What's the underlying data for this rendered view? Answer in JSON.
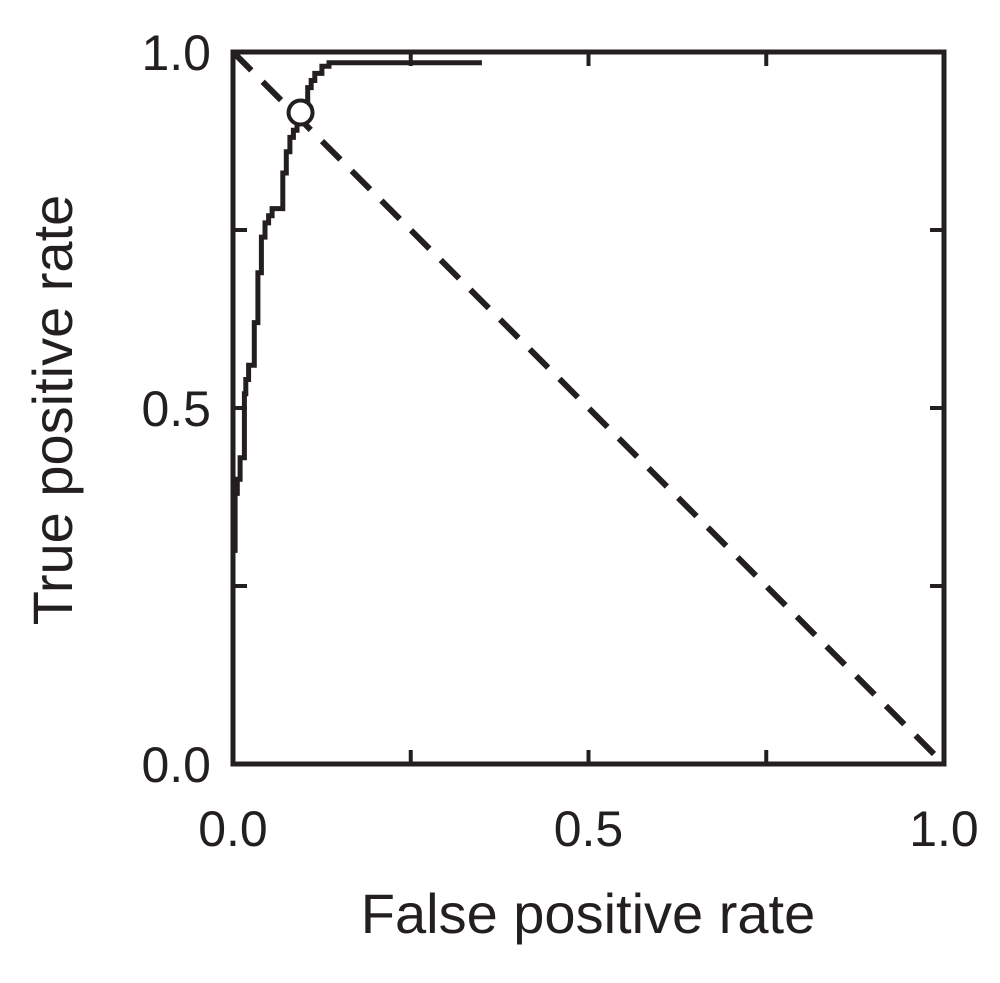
{
  "colors": {
    "ink": "#231f20",
    "background": "#ffffff"
  },
  "chart_data": {
    "type": "line",
    "title": "",
    "xlabel": "False positive rate",
    "ylabel": "True positive rate",
    "xlim": [
      0,
      1
    ],
    "ylim": [
      0,
      1
    ],
    "x_ticks": [
      0,
      0.25,
      0.5,
      0.75,
      1.0
    ],
    "y_ticks": [
      0,
      0.25,
      0.5,
      0.75,
      1.0
    ],
    "x_tick_labels": [
      "0.0",
      "0.5",
      "1.0"
    ],
    "x_tick_label_values": [
      0,
      0.5,
      1.0
    ],
    "y_tick_labels": [
      "0.0",
      "0.5",
      "1.0"
    ],
    "y_tick_label_values": [
      0,
      0.5,
      1.0
    ],
    "grid": false,
    "legend": "none",
    "series": [
      {
        "style": "solid",
        "x": [
          0.0,
          0.0,
          0.003,
          0.003,
          0.006,
          0.006,
          0.01,
          0.01,
          0.016,
          0.016,
          0.018,
          0.018,
          0.022,
          0.022,
          0.03,
          0.03,
          0.035,
          0.035,
          0.04,
          0.04,
          0.045,
          0.045,
          0.05,
          0.05,
          0.055,
          0.055,
          0.06,
          0.06,
          0.07,
          0.07,
          0.075,
          0.075,
          0.08,
          0.08,
          0.085,
          0.085,
          0.09,
          0.09,
          0.1,
          0.1,
          0.105,
          0.105,
          0.11,
          0.11,
          0.115,
          0.115,
          0.125,
          0.125,
          0.135,
          0.135,
          0.2,
          0.28,
          0.35
        ],
        "y": [
          0.2,
          0.3,
          0.3,
          0.38,
          0.38,
          0.4,
          0.4,
          0.43,
          0.43,
          0.52,
          0.52,
          0.54,
          0.54,
          0.56,
          0.56,
          0.62,
          0.62,
          0.69,
          0.69,
          0.74,
          0.74,
          0.76,
          0.76,
          0.77,
          0.77,
          0.78,
          0.78,
          0.78,
          0.78,
          0.83,
          0.83,
          0.86,
          0.86,
          0.88,
          0.88,
          0.89,
          0.89,
          0.9,
          0.9,
          0.93,
          0.93,
          0.95,
          0.95,
          0.96,
          0.96,
          0.97,
          0.97,
          0.98,
          0.98,
          0.985,
          0.985,
          0.985,
          0.985
        ]
      },
      {
        "style": "dashed",
        "x": [
          0,
          1
        ],
        "y": [
          1,
          0
        ]
      }
    ],
    "markers": [
      {
        "shape": "open-circle",
        "x": 0.095,
        "y": 0.915
      }
    ]
  }
}
